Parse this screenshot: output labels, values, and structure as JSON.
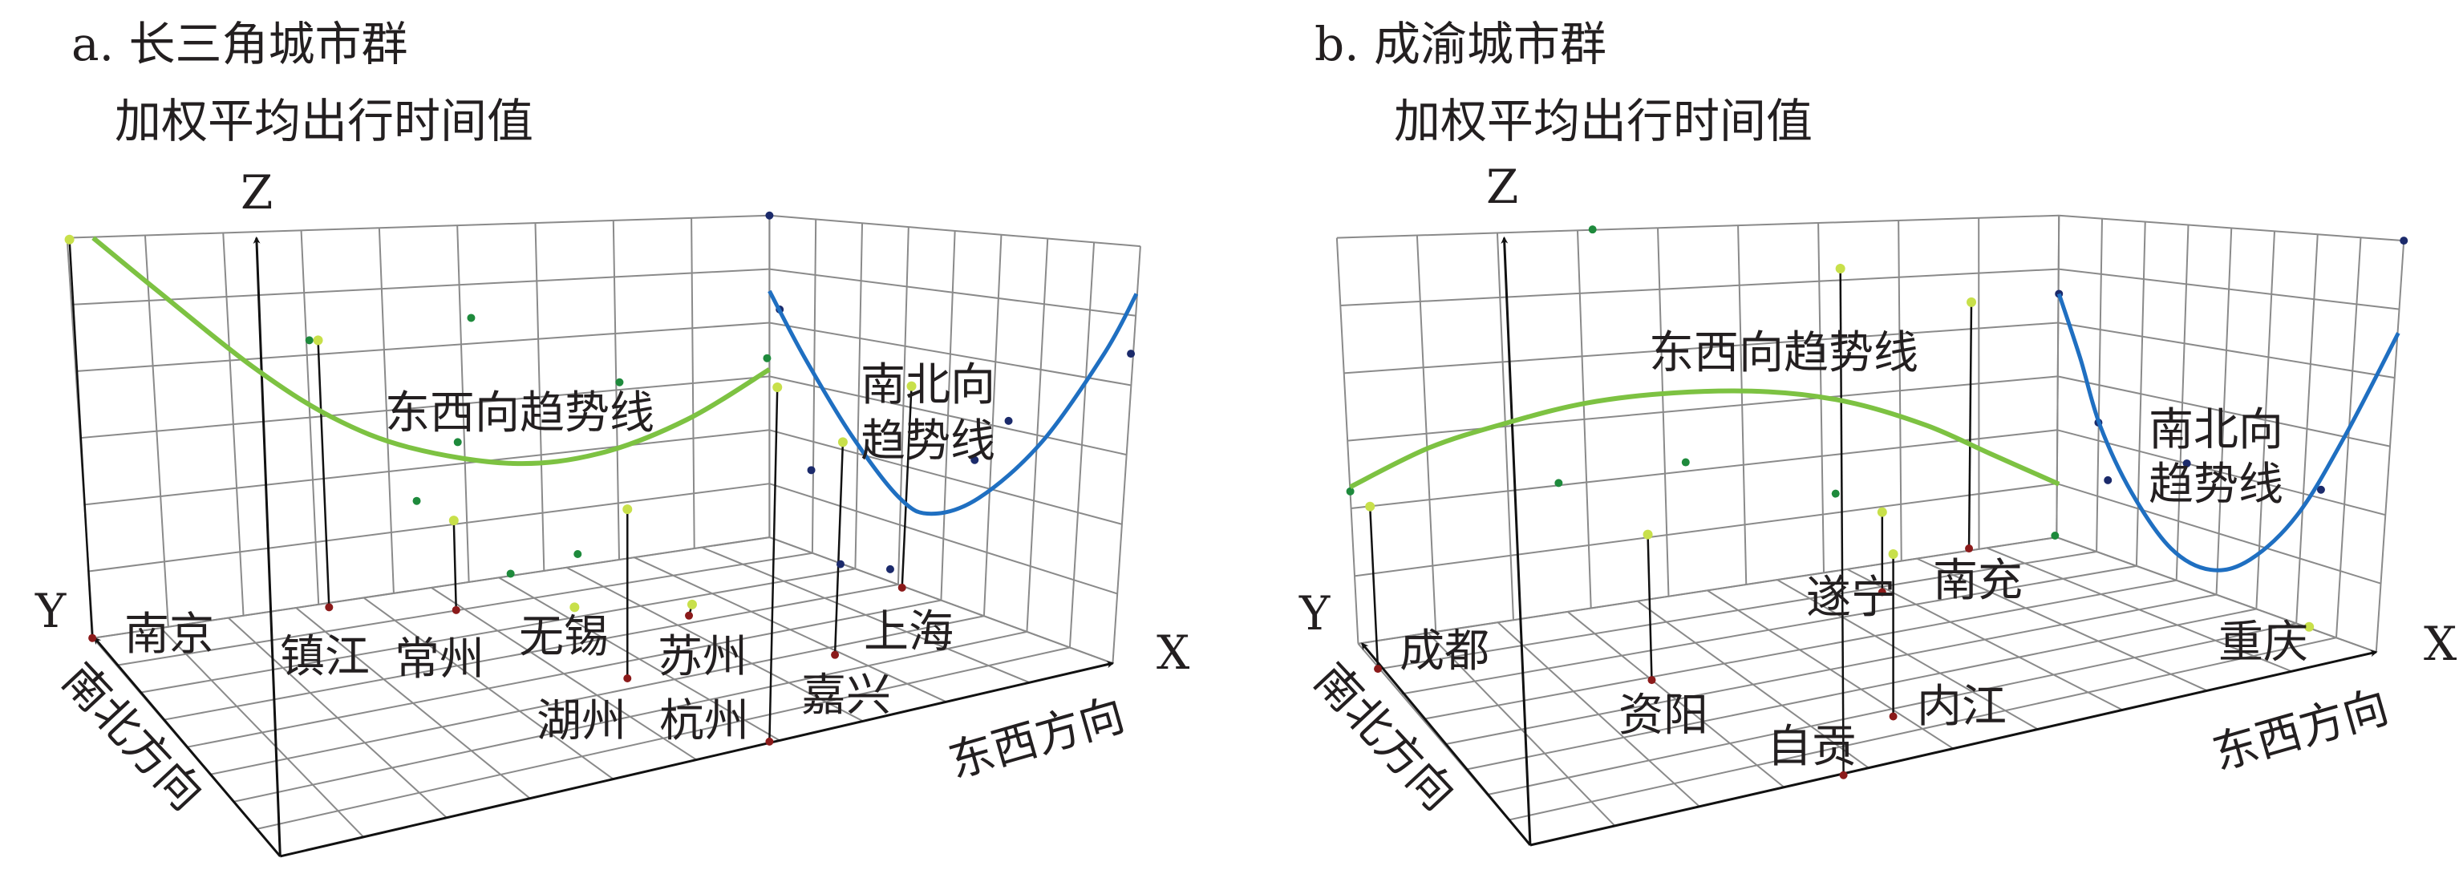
{
  "chart_data": [
    {
      "type": "scatter",
      "variant": "3d-trend-analysis",
      "title": "a. 长三角城市群",
      "zlabel": "加权平均出行时间值",
      "axes": {
        "z": "Z",
        "y": "Y",
        "x": "X",
        "y_direction": "南北方向",
        "x_direction": "东西方向"
      },
      "cities": [
        "南京",
        "镇江",
        "常州",
        "无锡",
        "苏州",
        "湖州",
        "杭州",
        "嘉兴",
        "上海"
      ],
      "trend_lines": [
        {
          "name": "东西向趋势线",
          "shape": "U-shaped (convex)",
          "color": "#7dc242"
        },
        {
          "name": "南北向趋势线",
          "shape": "U-shaped (convex)",
          "color": "#1f6fc1"
        }
      ],
      "grid": true
    },
    {
      "type": "scatter",
      "variant": "3d-trend-analysis",
      "title": "b. 成渝城市群",
      "zlabel": "加权平均出行时间值",
      "axes": {
        "z": "Z",
        "y": "Y",
        "x": "X",
        "y_direction": "南北方向",
        "x_direction": "东西方向"
      },
      "cities": [
        "成都",
        "资阳",
        "自贡",
        "遂宁",
        "内江",
        "南充",
        "重庆"
      ],
      "trend_lines": [
        {
          "name": "东西向趋势线",
          "shape": "inverted U (concave)",
          "color": "#7dc242"
        },
        {
          "name": "南北向趋势线",
          "shape": "U-shaped (convex)",
          "color": "#1f6fc1"
        }
      ],
      "grid": true
    }
  ],
  "colors": {
    "ew_trend": "#7dc242",
    "ns_trend": "#1f6fc1",
    "data_point": "#c8e04a",
    "ew_projection": "#1e8a3c",
    "ns_projection": "#1b2a6b",
    "base_point": "#8b1a1a"
  }
}
